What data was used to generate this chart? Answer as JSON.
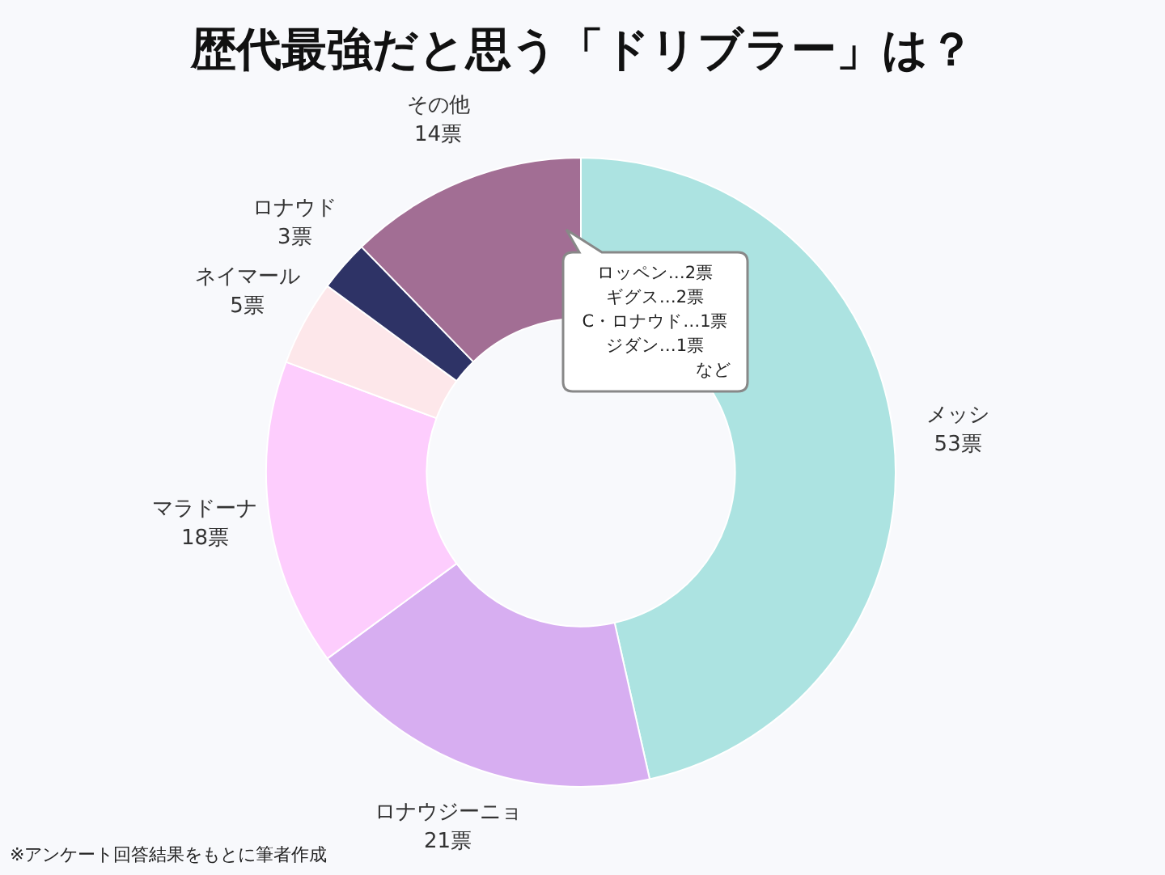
{
  "chart_data": {
    "type": "donut",
    "title": "歴代最強だと思う「ドリブラー」は？",
    "categories": [
      "メッシ",
      "ロナウジーニョ",
      "マラドーナ",
      "ネイマール",
      "ロナウド",
      "その他"
    ],
    "values": [
      53,
      21,
      18,
      5,
      3,
      14
    ],
    "value_labels": [
      "53票",
      "21票",
      "18票",
      "5票",
      "3票",
      "14票"
    ],
    "colors": [
      "#ace3e1",
      "#d7aef1",
      "#fdcdfd",
      "#fde7ea",
      "#2e3366",
      "#a26e94"
    ],
    "annotations": [
      "ロッペン…2票",
      "ギグス…2票",
      "C・ロナウド…1票",
      "ジダン…1票",
      "など",
      "※アンケート回答結果をもとに筆者作成"
    ],
    "legend": false
  }
}
